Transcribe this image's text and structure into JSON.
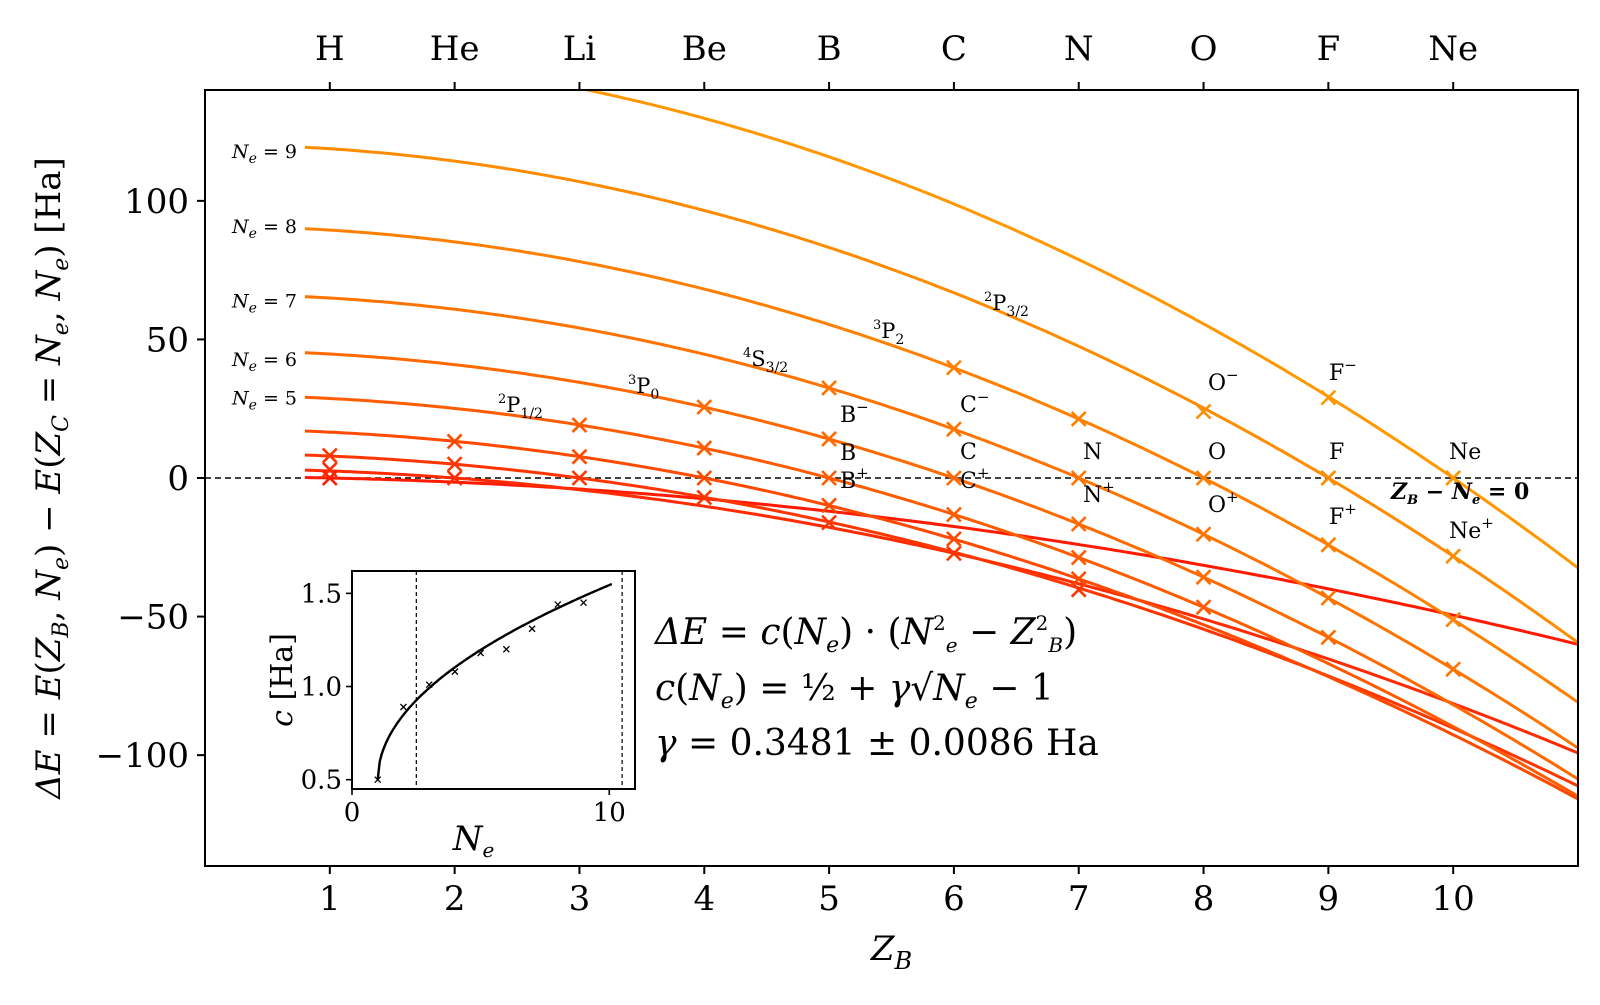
{
  "chart_data": {
    "type": "line",
    "xlabel_main": "Z",
    "xlabel_sub": "B",
    "ylabel": "ΔE = E(Z_B, N_e) − E(Z_C = N_e, N_e) [Ha]",
    "xlim": [
      0,
      11
    ],
    "ylim": [
      -140,
      140
    ],
    "xticks": [
      "1",
      "2",
      "3",
      "4",
      "5",
      "6",
      "7",
      "8",
      "9",
      "10"
    ],
    "yticks": [
      100,
      50,
      0,
      -50,
      -100
    ],
    "ytick_labels": [
      "100",
      "50",
      "0",
      "−50",
      "−100"
    ],
    "top_axis_labels": [
      "H",
      "He",
      "Li",
      "Be",
      "B",
      "C",
      "N",
      "O",
      "F",
      "Ne"
    ],
    "gamma": 0.3481,
    "colors": {
      "1": "#ff1a00",
      "2": "#ff2b00",
      "3": "#ff3500",
      "4": "#ff4a00",
      "5": "#ff5b00",
      "6": "#ff6900",
      "7": "#ff7400",
      "8": "#ff8000",
      "9": "#ff8c00",
      "10": "#ff9700"
    },
    "series": [
      {
        "Ne": 1,
        "c": 0.5,
        "x": [
          1
        ],
        "y": [
          0
        ]
      },
      {
        "Ne": 2,
        "c": 0.848,
        "x": [
          1,
          2
        ],
        "y": [
          3.0,
          0
        ]
      },
      {
        "Ne": 3,
        "c": 0.992,
        "x": [
          1,
          2,
          3,
          4,
          5,
          6,
          7
        ],
        "y": [
          8.1,
          5.0,
          0,
          -7.0,
          -16.1,
          -27.2,
          -40.3
        ]
      },
      {
        "Ne": 4,
        "c": 1.103,
        "x": [
          2,
          3,
          4,
          5,
          6,
          7
        ],
        "y": [
          13.2,
          7.7,
          0,
          -9.9,
          -22.0,
          -36.4
        ]
      },
      {
        "Ne": 5,
        "c": 1.196,
        "x": [
          3,
          4,
          5,
          6,
          7,
          8
        ],
        "y": [
          19.1,
          10.8,
          0,
          -13.2,
          -28.7,
          -46.6
        ]
      },
      {
        "Ne": 6,
        "c": 1.278,
        "x": [
          4,
          5,
          6,
          7,
          8,
          9
        ],
        "y": [
          25.6,
          14.1,
          0,
          -16.6,
          -35.8,
          -57.5
        ]
      },
      {
        "Ne": 7,
        "c": 1.353,
        "x": [
          5,
          6,
          7,
          8,
          9,
          10
        ],
        "y": [
          32.5,
          17.6,
          0,
          -20.3,
          -43.3,
          -69.0
        ]
      },
      {
        "Ne": 8,
        "c": 1.42,
        "x": [
          6,
          7,
          8,
          9,
          10
        ],
        "y": [
          39.8,
          21.3,
          0,
          -24.1,
          -51.1
        ]
      },
      {
        "Ne": 9,
        "c": 1.485,
        "x": [
          9,
          10
        ],
        "y": [
          0,
          -28.2
        ]
      },
      {
        "Ne": 10,
        "c": 1.545,
        "x": [
          10
        ],
        "y": [
          0
        ]
      }
    ],
    "extra_points": [
      {
        "x": 8,
        "y": 24,
        "Ne": 9
      },
      {
        "x": 9,
        "y": 29,
        "Ne": 10
      },
      {
        "x": 9,
        "y": 0,
        "Ne": 9
      },
      {
        "x": 10,
        "y": 0,
        "Ne": 10
      }
    ],
    "curve_labels": [
      {
        "text": "N",
        "sub": "e",
        "tail": " = 9",
        "Ne": 9
      },
      {
        "text": "N",
        "sub": "e",
        "tail": " = 8",
        "Ne": 8
      },
      {
        "text": "N",
        "sub": "e",
        "tail": " = 7",
        "Ne": 7
      },
      {
        "text": "N",
        "sub": "e",
        "tail": " = 6",
        "Ne": 6
      },
      {
        "text": "N",
        "sub": "e",
        "tail": " = 5",
        "Ne": 5
      }
    ],
    "term_labels": [
      {
        "sup": "2",
        "main": "P",
        "sub": "1/2"
      },
      {
        "sup": "3",
        "main": "P",
        "sub": "0"
      },
      {
        "sup": "4",
        "main": "S",
        "sub": "3/2"
      },
      {
        "sup": "3",
        "main": "P",
        "sub": "2"
      },
      {
        "sup": "2",
        "main": "P",
        "sub": "3/2"
      }
    ],
    "ion_labels": [
      {
        "main": "B",
        "sup": "−"
      },
      {
        "main": "B",
        "sup": ""
      },
      {
        "main": "B",
        "sup": "+"
      },
      {
        "main": "C",
        "sup": "−"
      },
      {
        "main": "C",
        "sup": ""
      },
      {
        "main": "C",
        "sup": "+"
      },
      {
        "main": "N",
        "sup": ""
      },
      {
        "main": "N",
        "sup": "+"
      },
      {
        "main": "O",
        "sup": "−"
      },
      {
        "main": "O",
        "sup": ""
      },
      {
        "main": "O",
        "sup": "+"
      },
      {
        "main": "F",
        "sup": "−"
      },
      {
        "main": "F",
        "sup": ""
      },
      {
        "main": "F",
        "sup": "+"
      },
      {
        "main": "Ne",
        "sup": ""
      },
      {
        "main": "Ne",
        "sup": "+"
      }
    ],
    "zero_line_label": "Z_B − N_e = 0",
    "equations": [
      "ΔE = c(N_e) · (N_e² − Z_B²)",
      "c(N_e) = ½ + γ√(N_e − 1)",
      "γ = 0.3481 ± 0.0086 Ha"
    ],
    "inset": {
      "type": "scatter",
      "xlabel": "N_e",
      "ylabel": "c [Ha]",
      "xlim": [
        0,
        11
      ],
      "ylim": [
        0.45,
        1.62
      ],
      "xticks": [
        "0",
        "10"
      ],
      "yticks": [
        "0.5",
        "1.0",
        "1.5"
      ],
      "points_x": [
        1,
        2,
        3,
        4,
        5,
        6,
        7,
        8,
        9
      ],
      "points_y": [
        0.5,
        0.89,
        1.01,
        1.08,
        1.18,
        1.2,
        1.31,
        1.44,
        1.45
      ],
      "vlines": [
        2.5,
        10.5
      ]
    }
  }
}
